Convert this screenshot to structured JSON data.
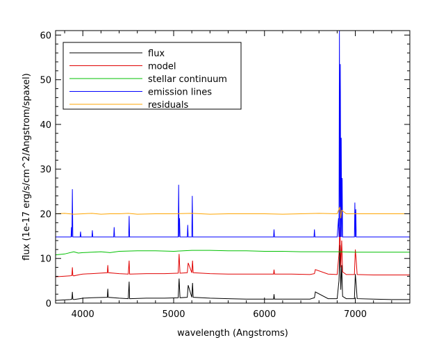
{
  "chart_data": {
    "type": "line",
    "title": "",
    "xlabel": "wavelength (Angstroms)",
    "ylabel": "flux (1e-17 erg/s/cm^2/Angstrom/spaxel)",
    "xlim": [
      3700,
      7600
    ],
    "ylim": [
      0,
      61
    ],
    "xticks": [
      {
        "value": 4000,
        "label": "4000"
      },
      {
        "value": 5000,
        "label": "5000"
      },
      {
        "value": 6000,
        "label": "6000"
      },
      {
        "value": 7000,
        "label": "7000"
      }
    ],
    "yticks": [
      {
        "value": 0,
        "label": "0"
      },
      {
        "value": 10,
        "label": "10"
      },
      {
        "value": 20,
        "label": "20"
      },
      {
        "value": 30,
        "label": "30"
      },
      {
        "value": 40,
        "label": "40"
      },
      {
        "value": 50,
        "label": "50"
      },
      {
        "value": 60,
        "label": "60"
      }
    ],
    "grid": false,
    "legend_position": "top-left",
    "series": [
      {
        "name": "flux",
        "color": "#000000",
        "x": [
          3700,
          3860,
          3880,
          3885,
          3890,
          3900,
          3970,
          4000,
          4100,
          4270,
          4275,
          4280,
          4400,
          4500,
          4510,
          4515,
          4520,
          4700,
          4900,
          5050,
          5060,
          5070,
          5150,
          5160,
          5200,
          5208,
          5215,
          5400,
          5600,
          5800,
          6100,
          6105,
          6110,
          6300,
          6500,
          6550,
          6560,
          6700,
          6800,
          6820,
          6830,
          6840,
          6850,
          6860,
          6900,
          6990,
          7000,
          7010,
          7020,
          7200,
          7400,
          7600
        ],
        "y": [
          0.6,
          0.8,
          0.9,
          2.5,
          0.9,
          0.8,
          1.0,
          1.1,
          1.2,
          1.3,
          3.2,
          1.3,
          1.1,
          1.0,
          4.8,
          1.0,
          1.0,
          1.1,
          1.1,
          1.2,
          5.5,
          1.2,
          1.3,
          4.0,
          1.3,
          4.5,
          1.3,
          1.1,
          1.0,
          0.9,
          0.9,
          2.0,
          0.9,
          0.9,
          0.9,
          1.2,
          2.5,
          1.0,
          1.0,
          5.0,
          13.0,
          3.0,
          8.5,
          1.5,
          1.0,
          1.0,
          6.5,
          4.0,
          1.0,
          0.9,
          0.8,
          0.8
        ]
      },
      {
        "name": "model",
        "color": "#e00000",
        "x": [
          3700,
          3860,
          3880,
          3885,
          3890,
          3900,
          3970,
          4000,
          4100,
          4270,
          4275,
          4280,
          4400,
          4500,
          4510,
          4515,
          4520,
          4700,
          4900,
          5050,
          5060,
          5070,
          5150,
          5160,
          5200,
          5208,
          5215,
          5400,
          5600,
          5800,
          6100,
          6105,
          6110,
          6300,
          6500,
          6550,
          6560,
          6700,
          6800,
          6820,
          6830,
          6840,
          6850,
          6860,
          6900,
          6990,
          7000,
          7010,
          7020,
          7200,
          7400,
          7600
        ],
        "y": [
          5.9,
          6.1,
          6.2,
          8.0,
          6.2,
          6.1,
          6.4,
          6.5,
          6.6,
          6.8,
          8.5,
          6.8,
          6.6,
          6.5,
          9.5,
          6.5,
          6.5,
          6.6,
          6.6,
          6.7,
          11.0,
          6.7,
          6.8,
          9.0,
          6.8,
          9.5,
          6.8,
          6.6,
          6.5,
          6.5,
          6.5,
          7.5,
          6.5,
          6.5,
          6.4,
          6.6,
          7.5,
          6.5,
          6.4,
          11.0,
          17.0,
          8.0,
          14.0,
          7.0,
          6.4,
          6.4,
          12.0,
          9.5,
          6.4,
          6.3,
          6.3,
          6.3
        ]
      },
      {
        "name": "stellar continuum",
        "color": "#00c000",
        "x": [
          3700,
          3800,
          3900,
          3950,
          4000,
          4100,
          4200,
          4300,
          4400,
          4600,
          4800,
          5000,
          5200,
          5400,
          5600,
          5800,
          6000,
          6200,
          6400,
          6600,
          6800,
          7000,
          7200,
          7400,
          7600
        ],
        "y": [
          10.8,
          11.0,
          11.5,
          11.2,
          11.3,
          11.4,
          11.5,
          11.3,
          11.6,
          11.7,
          11.7,
          11.6,
          11.8,
          11.8,
          11.7,
          11.7,
          11.6,
          11.6,
          11.5,
          11.5,
          11.5,
          11.4,
          11.4,
          11.4,
          11.4
        ]
      },
      {
        "name": "emission lines",
        "color": "#0000ff",
        "x": [
          3700,
          3870,
          3875,
          3880,
          3885,
          3890,
          3895,
          3970,
          3975,
          3980,
          4100,
          4105,
          4110,
          4340,
          4345,
          4350,
          4505,
          4510,
          4515,
          5050,
          5055,
          5060,
          5065,
          5070,
          5150,
          5155,
          5160,
          5200,
          5205,
          5210,
          5215,
          6100,
          6105,
          6110,
          6545,
          6550,
          6555,
          6800,
          6815,
          6820,
          6825,
          6830,
          6835,
          6840,
          6845,
          6850,
          6855,
          6860,
          6990,
          6995,
          7000,
          7005,
          7010,
          7015,
          7600
        ],
        "y": [
          14.8,
          14.8,
          17.0,
          14.8,
          25.5,
          14.8,
          14.8,
          14.8,
          16.0,
          14.8,
          14.8,
          16.3,
          14.8,
          14.8,
          17.0,
          14.8,
          14.8,
          19.5,
          14.8,
          14.8,
          26.5,
          14.8,
          19.0,
          14.8,
          14.8,
          17.5,
          14.8,
          14.8,
          24.0,
          14.8,
          14.8,
          14.8,
          16.5,
          14.8,
          14.8,
          16.5,
          14.8,
          14.8,
          19.0,
          14.8,
          61.0,
          14.8,
          53.5,
          14.8,
          37.0,
          14.8,
          28.0,
          14.8,
          14.8,
          22.5,
          14.8,
          21.0,
          14.8,
          14.8,
          14.8
        ]
      },
      {
        "name": "residuals",
        "color": "#ffa500",
        "x": [
          3700,
          3800,
          3900,
          4000,
          4100,
          4200,
          4300,
          4400,
          4500,
          4600,
          4800,
          5000,
          5200,
          5400,
          5600,
          5800,
          6000,
          6200,
          6400,
          6600,
          6800,
          6830,
          6840,
          6850,
          6900,
          7000,
          7200,
          7400,
          7600
        ],
        "y": [
          20.0,
          20.1,
          19.9,
          20.0,
          20.1,
          19.9,
          20.0,
          20.0,
          20.1,
          19.9,
          20.0,
          20.0,
          20.1,
          19.9,
          20.0,
          20.0,
          20.0,
          19.9,
          20.0,
          20.1,
          20.0,
          21.5,
          19.0,
          20.8,
          20.0,
          20.0,
          20.0,
          20.0,
          20.0
        ]
      }
    ]
  }
}
